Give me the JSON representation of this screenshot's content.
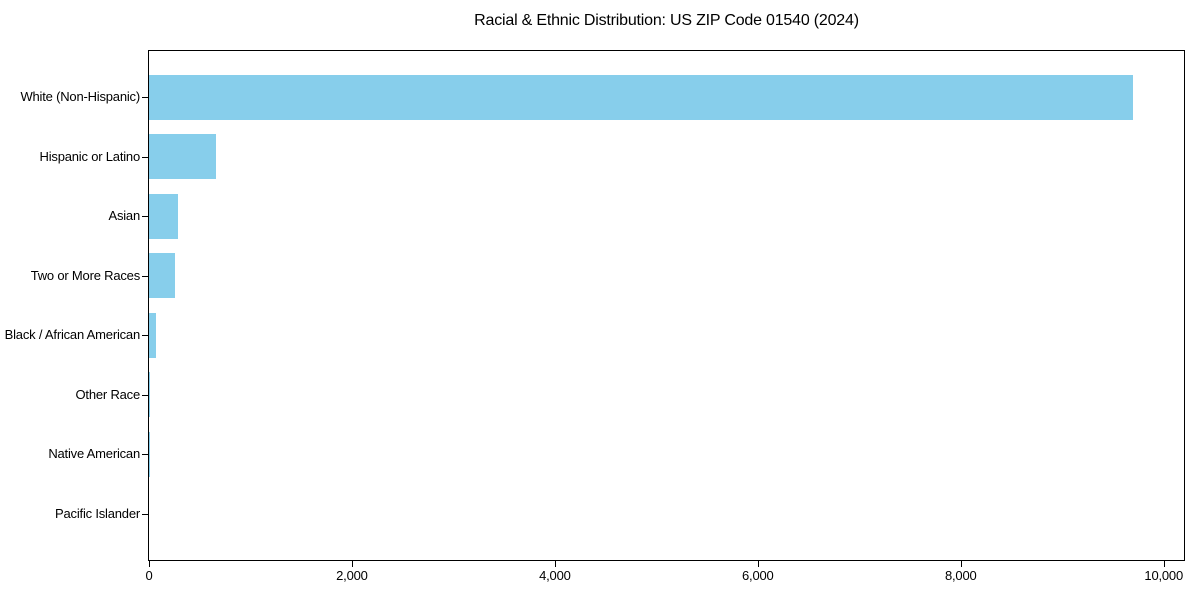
{
  "chart_data": {
    "type": "bar",
    "orientation": "horizontal",
    "title": "Racial & Ethnic Distribution: US ZIP Code 01540 (2024)",
    "categories": [
      "White (Non-Hispanic)",
      "Hispanic or Latino",
      "Asian",
      "Two or More Races",
      "Black / African American",
      "Other Race",
      "Native American",
      "Pacific Islander"
    ],
    "values": [
      9700,
      660,
      290,
      260,
      65,
      12,
      4,
      0
    ],
    "bar_color": "#87CEEB",
    "background_color": "#ffffff",
    "frame_color": "#000000",
    "text_color": "#000000",
    "xlabel": "",
    "ylabel": "",
    "xlim": [
      0,
      10200
    ],
    "x_ticks": [
      0,
      2000,
      4000,
      6000,
      8000,
      10000
    ],
    "x_tick_labels": [
      "0",
      "2,000",
      "4,000",
      "6,000",
      "8,000",
      "10,000"
    ],
    "grid": false,
    "legend": null,
    "frame": true
  }
}
